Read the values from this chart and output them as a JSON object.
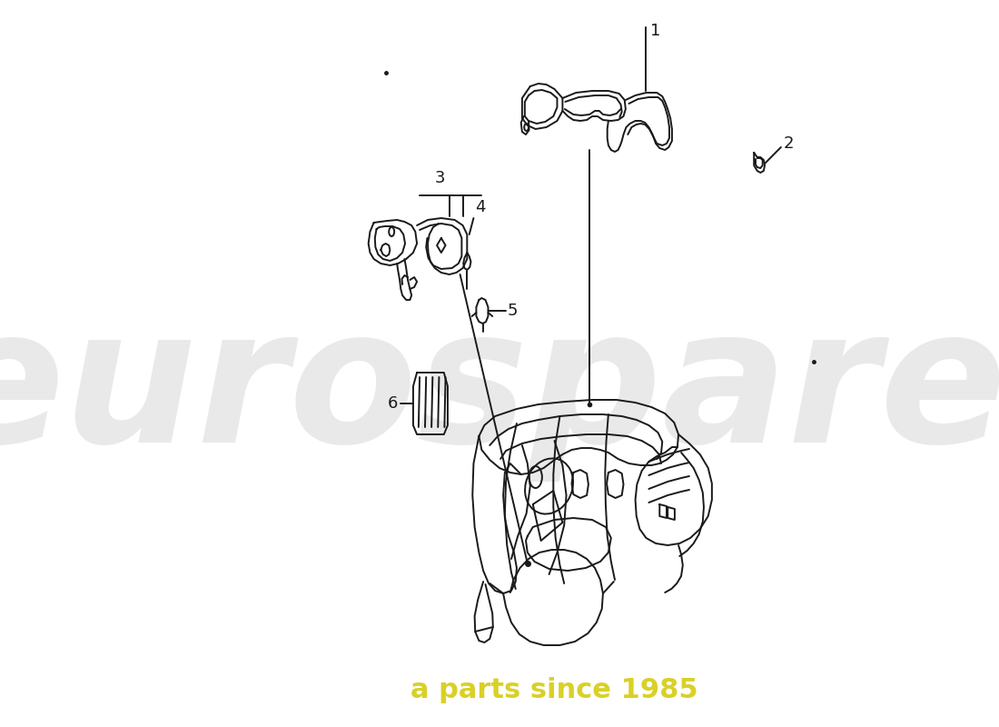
{
  "bg_color": "#ffffff",
  "line_color": "#1a1a1a",
  "watermark_text1": "eurospares",
  "watermark_text2": "a parts since 1985",
  "watermark_color": "#d0d0d0",
  "watermark_yellow": "#d4c800",
  "figsize": [
    11.0,
    8.0
  ],
  "dpi": 100,
  "xlim": [
    0,
    1100
  ],
  "ylim": [
    0,
    800
  ]
}
